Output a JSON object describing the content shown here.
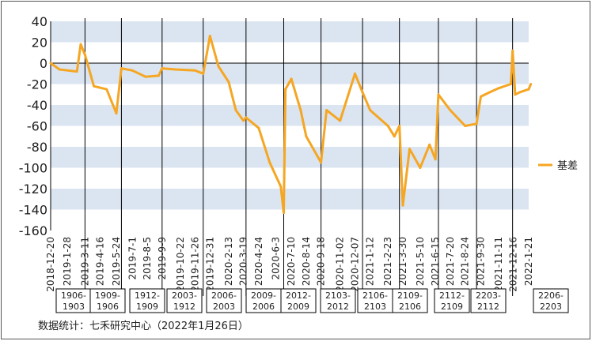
{
  "chart_data": {
    "type": "line",
    "title": "",
    "xlabel": "",
    "ylabel": "",
    "ylim": [
      -160,
      40
    ],
    "yticks": [
      40,
      20,
      0,
      -20,
      -40,
      -60,
      -80,
      -100,
      -120,
      -140,
      -160
    ],
    "grid": "alternating horizontal bands",
    "legend_position": "right",
    "series_color": "#f5a623",
    "series": [
      {
        "name": "基差",
        "x": [
          "2018-12-20",
          "2019-1-10",
          "2019-2-20",
          "2019-3-1",
          "2019-3-11",
          "2019-4-1",
          "2019-5-1",
          "2019-5-24",
          "2019-6-5",
          "2019-7-1",
          "2019-8-1",
          "2019-9-1",
          "2019-9-9",
          "2019-10-10",
          "2019-11-26",
          "2019-12-15",
          "2019-12-31",
          "2020-1-20",
          "2020-2-13",
          "2020-3-1",
          "2020-3-19",
          "2020-3-25",
          "2020-4-24",
          "2020-5-20",
          "2020-6-15",
          "2020-6-22",
          "2020-6-26",
          "2020-7-10",
          "2020-8-1",
          "2020-8-14",
          "2020-9-18",
          "2020-10-1",
          "2020-11-2",
          "2020-12-7",
          "2020-12-25",
          "2021-1-12",
          "2021-2-23",
          "2021-3-10",
          "2021-3-22",
          "2021-3-30",
          "2021-4-15",
          "2021-5-10",
          "2021-6-1",
          "2021-6-15",
          "2021-6-22",
          "2021-7-20",
          "2021-8-24",
          "2021-9-20",
          "2021-9-30",
          "2021-10-20",
          "2021-11-11",
          "2021-12-10",
          "2021-12-14",
          "2021-12-20",
          "2021-12-30",
          "2022-1-21",
          "2022-1-26"
        ],
        "values": [
          0,
          -6,
          -8,
          18,
          8,
          -22,
          -25,
          -48,
          -5,
          -7,
          -13,
          -12,
          -5,
          -6,
          -7,
          -10,
          26,
          -3,
          -18,
          -45,
          -55,
          -52,
          -62,
          -95,
          -118,
          -143,
          -25,
          -15,
          -45,
          -70,
          -95,
          -45,
          -55,
          -10,
          -28,
          -45,
          -60,
          -70,
          -60,
          -136,
          -82,
          -100,
          -78,
          -92,
          -30,
          -45,
          -60,
          -58,
          -32,
          -28,
          -24,
          -20,
          12,
          -30,
          -28,
          -25,
          -20
        ]
      }
    ]
  },
  "legend": {
    "label": "基差"
  },
  "xlabels": [
    "2018-12-20",
    "2019-1-28",
    "2019-3-11",
    "2019-4-16",
    "2019-5-24",
    "2019-7-1",
    "2019-8-5",
    "2019-9-9",
    "2019-10-22",
    "2019-11-26",
    "2019-12-31",
    "2020-2-13",
    "2020-3-19",
    "2020-4-24",
    "2020-6-3",
    "2020-7-10",
    "2020-8-14",
    "2020-9-18",
    "2020-11-02",
    "2020-12-07",
    "2021-1-12",
    "2021-2-23",
    "2021-3-30",
    "2021-5-10",
    "2021-6-15",
    "2021-7-20",
    "2021-8-24",
    "2021-9-30",
    "2021-11-11",
    "2021-12-16",
    "2022-1-21"
  ],
  "contract_boxes": [
    {
      "top": "1906-",
      "bottom": "1903"
    },
    {
      "top": "1909-",
      "bottom": "1906"
    },
    {
      "top": "1912-",
      "bottom": "1909"
    },
    {
      "top": "2003-",
      "bottom": "1912"
    },
    {
      "top": "2006-",
      "bottom": "2003"
    },
    {
      "top": "2009-",
      "bottom": "2006"
    },
    {
      "top": "2012-",
      "bottom": "2009"
    },
    {
      "top": "2103-",
      "bottom": "2012"
    },
    {
      "top": "2106-",
      "bottom": "2103"
    },
    {
      "top": "2109-",
      "bottom": "2106"
    },
    {
      "top": "2112-",
      "bottom": "2109"
    },
    {
      "top": "2203-",
      "bottom": "2112"
    },
    {
      "top": "2206-",
      "bottom": "2203"
    }
  ],
  "source": "数据统计：七禾研究中心（2022年1月26日）"
}
